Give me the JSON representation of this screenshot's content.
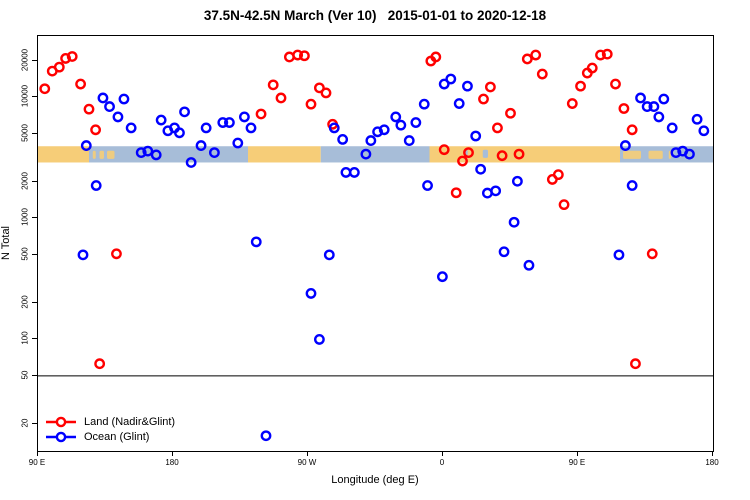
{
  "chart_data": {
    "type": "scatter",
    "title": "37.5N-42.5N March (Ver 10)   2015-01-01 to 2020-12-18",
    "xlabel": "Longitude (deg E)",
    "ylabel": "N Total",
    "x_axis": {
      "note": "degrees eastward from left edge (left edge = 90E, wraps east through 180, 90W, 0, 90E to 180)",
      "range_deg": [
        0,
        450
      ],
      "ticks": [
        {
          "pos": 0,
          "label": "90 E"
        },
        {
          "pos": 90,
          "label": "180"
        },
        {
          "pos": 180,
          "label": "90 W"
        },
        {
          "pos": 270,
          "label": "0"
        },
        {
          "pos": 360,
          "label": "90 E"
        },
        {
          "pos": 450,
          "label": "180"
        }
      ]
    },
    "y_axis": {
      "scale": "log10",
      "ticks": [
        20000,
        10000,
        5000,
        2000,
        1000,
        500,
        200,
        100,
        50,
        20
      ],
      "range": [
        14,
        34000
      ],
      "grid": false
    },
    "reference_line_n": 50,
    "legend_position": "bottom-left",
    "series": [
      {
        "name": "Land (Nadir&Glint)",
        "color": "#ff0000",
        "marker": "open-circle",
        "points": [
          [
            4.5,
            11800
          ],
          [
            9.5,
            16500
          ],
          [
            14.2,
            17800
          ],
          [
            18.4,
            21000
          ],
          [
            22.8,
            21800
          ],
          [
            28.4,
            12900
          ],
          [
            34,
            8000
          ],
          [
            38.4,
            5400
          ],
          [
            41.1,
            63
          ],
          [
            52.3,
            510
          ],
          [
            148.7,
            7300
          ],
          [
            156.8,
            12700
          ],
          [
            162,
            9900
          ],
          [
            167.6,
            21600
          ],
          [
            173.1,
            22400
          ],
          [
            177.6,
            22100
          ],
          [
            182,
            8800
          ],
          [
            187.6,
            12000
          ],
          [
            192,
            10900
          ],
          [
            196.4,
            6000
          ],
          [
            261.9,
            20000
          ],
          [
            265.2,
            21600
          ],
          [
            270.8,
            3700
          ],
          [
            278.8,
            1630
          ],
          [
            283,
            2980
          ],
          [
            287,
            3500
          ],
          [
            297,
            9700
          ],
          [
            301.6,
            12200
          ],
          [
            306.3,
            5600
          ],
          [
            309.4,
            3300
          ],
          [
            315,
            7400
          ],
          [
            320.7,
            3400
          ],
          [
            326.2,
            20800
          ],
          [
            331.8,
            22400
          ],
          [
            336.2,
            15600
          ],
          [
            342.9,
            2100
          ],
          [
            346.9,
            2300
          ],
          [
            350.7,
            1300
          ],
          [
            356.2,
            8900
          ],
          [
            361.7,
            12400
          ],
          [
            366.2,
            15900
          ],
          [
            369.5,
            17500
          ],
          [
            375,
            22400
          ],
          [
            379.5,
            22800
          ],
          [
            385,
            12900
          ],
          [
            390.6,
            8100
          ],
          [
            396.1,
            5400
          ],
          [
            398.3,
            63
          ],
          [
            409.5,
            510
          ]
        ]
      },
      {
        "name": "Ocean (Glint)",
        "color": "#0000ff",
        "marker": "open-circle",
        "points": [
          [
            30,
            500
          ],
          [
            32.2,
            4000
          ],
          [
            38.8,
            1870
          ],
          [
            43.3,
            9900
          ],
          [
            47.7,
            8400
          ],
          [
            53.3,
            6900
          ],
          [
            57.3,
            9700
          ],
          [
            62.1,
            5600
          ],
          [
            68.8,
            3500
          ],
          [
            73.2,
            3600
          ],
          [
            78.8,
            3350
          ],
          [
            82.1,
            6500
          ],
          [
            86.6,
            5300
          ],
          [
            91,
            5600
          ],
          [
            94.3,
            5100
          ],
          [
            97.7,
            7600
          ],
          [
            102.1,
            2900
          ],
          [
            108.7,
            4000
          ],
          [
            112.1,
            5600
          ],
          [
            117.6,
            3500
          ],
          [
            123.2,
            6200
          ],
          [
            127.6,
            6200
          ],
          [
            133.2,
            4200
          ],
          [
            137.6,
            6900
          ],
          [
            142,
            5600
          ],
          [
            145.5,
            640
          ],
          [
            152,
            16
          ],
          [
            182,
            240
          ],
          [
            187.6,
            100
          ],
          [
            194.2,
            500
          ],
          [
            197.5,
            5600
          ],
          [
            203.1,
            4500
          ],
          [
            205.3,
            2400
          ],
          [
            210.9,
            2400
          ],
          [
            218.6,
            3400
          ],
          [
            221.9,
            4400
          ],
          [
            226.4,
            5200
          ],
          [
            230.8,
            5400
          ],
          [
            238.5,
            6900
          ],
          [
            241.9,
            5900
          ],
          [
            247.5,
            4400
          ],
          [
            251.9,
            6200
          ],
          [
            257.5,
            8800
          ],
          [
            259.7,
            1870
          ],
          [
            269.6,
            330
          ],
          [
            270.8,
            12900
          ],
          [
            275.2,
            14200
          ],
          [
            280.8,
            8900
          ],
          [
            286.3,
            12400
          ],
          [
            291.8,
            4800
          ],
          [
            295.1,
            2550
          ],
          [
            299.6,
            1620
          ],
          [
            305.1,
            1690
          ],
          [
            310.7,
            530
          ],
          [
            317.4,
            930
          ],
          [
            319.6,
            2030
          ],
          [
            327.3,
            410
          ],
          [
            387.3,
            500
          ],
          [
            391.6,
            4000
          ],
          [
            396.1,
            1870
          ],
          [
            401.7,
            9900
          ],
          [
            406.1,
            8400
          ],
          [
            410.6,
            8400
          ],
          [
            413.9,
            6900
          ],
          [
            417.2,
            9700
          ],
          [
            422.8,
            5600
          ],
          [
            425.3,
            3500
          ],
          [
            429.8,
            3600
          ],
          [
            434.3,
            3400
          ],
          [
            439.4,
            6600
          ],
          [
            443.9,
            5300
          ]
        ]
      }
    ],
    "map_band": {
      "description": "land/ocean strip for latitude band drawn across plot",
      "n_top": 3950,
      "n_bottom": 2900,
      "land_color": "#f6cd78",
      "ocean_color": "#a7bdd8",
      "segments": [
        {
          "from": 0,
          "to": 34,
          "surface": "land"
        },
        {
          "from": 34,
          "to": 140,
          "surface": "ocean"
        },
        {
          "from": 140,
          "to": 188.5,
          "surface": "land"
        },
        {
          "from": 188.5,
          "to": 261,
          "surface": "ocean"
        },
        {
          "from": 261,
          "to": 388,
          "surface": "land"
        },
        {
          "from": 388,
          "to": 450,
          "surface": "ocean"
        }
      ],
      "islands": [
        {
          "from": 36.5,
          "to": 38.5
        },
        {
          "from": 41,
          "to": 44
        },
        {
          "from": 46,
          "to": 51
        },
        {
          "from": 390,
          "to": 402
        },
        {
          "from": 407,
          "to": 416.5
        },
        {
          "from": 420.5,
          "to": 422
        }
      ],
      "lakes": [
        {
          "from": 285,
          "to": 286.5
        },
        {
          "from": 296.5,
          "to": 300
        }
      ]
    }
  }
}
